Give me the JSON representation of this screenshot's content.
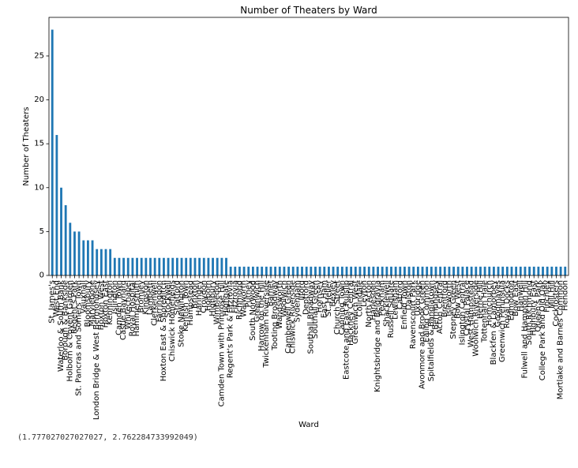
{
  "output_text": "(1.777027027027027, 2.762284733992049)",
  "chart_data": {
    "type": "bar",
    "title": "Number of Theaters by Ward",
    "xlabel": "Ward",
    "ylabel": "Number of Theaters",
    "ylim": [
      0,
      29.4
    ],
    "yticks": [
      0,
      5,
      10,
      15,
      20,
      25
    ],
    "grid": false,
    "bar_color": "#1f77b4",
    "categories": [
      "St. James's",
      "West End",
      "Waterloo & South Bank",
      "Borough & Bankside",
      "Holborn & Covent Garden",
      "Regent's Park",
      "St. Pancras and Somers Town",
      "Vauxhall",
      "Bloomsbury",
      "Marylebone",
      "London Bridge & West Bermondsey",
      "Hoxton West",
      "Hoxton East",
      "Kennington",
      "Islington",
      "Camden Town",
      "Castle Baynard",
      "Whitechapel",
      "Royal Hospital",
      "Hammersmith",
      "Bromley",
      "Kingston",
      "Lambeth",
      "Clerkenwell",
      "Farringdon",
      "Hoxton East & Shoreditch",
      "Stockwell",
      "Chiswick Homefields",
      "Stratford",
      "Stoke Newington",
      "Kentish Town",
      "Hampstead",
      "Brixton",
      "Haringey",
      "Croydon",
      "Holborn",
      "Highbury",
      "Wimbledon",
      "Camden Town with Primrose Hill",
      "Highgate",
      "Regent's Park & Fitzrovia",
      "Fitzrovia",
      "Richmond",
      "Walworth",
      "Putney",
      "South Norwood",
      "Greenwich",
      "Harrow on the Hill",
      "Twickenham Riverside",
      "Barnet",
      "Tooting Broadway",
      "Wandsworth",
      "Woolwich",
      "Camberwell Green",
      "Chiswick Riverside",
      "Sydenham",
      "Ilford",
      "Deptford",
      "Southall Broadway",
      "Southall Green",
      "Hornsey",
      "East Ham",
      "St. Helier",
      "Bexley",
      "Church Street",
      "Canning Town",
      "Eastcote and East Ruislip",
      "Hackney Central",
      "Greenwich West",
      "Colindale",
      "Leyton",
      "North Acton",
      "Harlesden",
      "Knightsbridge and Belgravia",
      "Peckham",
      "Shacklewell",
      "Russell Square",
      "Lewisham",
      "Catford",
      "Enfield Town",
      "Dalston",
      "Ravenscourt Park",
      "Uxbridge",
      "Avonmore and Brook Green",
      "Ealing Common",
      "Spitalfields & Banglatown",
      "Bermondsey",
      "Acton Central",
      "Brentford",
      "Isleworth",
      "Stepney Green",
      "Bow West",
      "Islington Central",
      "Crystal Palace",
      "West Hampstead",
      "Woolwich Riverside",
      "Herne Hill",
      "Tottenham Hale",
      "Hornchurch",
      "Blackfen & Lamorbey",
      "Goodmayes",
      "Greenwich Peninsula",
      "Royal Docks",
      "Edmonton",
      "Bow East",
      "Hanwell",
      "Fulwell and Hampton Hill",
      "South Richmond",
      "Highbury East",
      "Queen's Park",
      "College Park and Old Oak",
      "Finchley",
      "Mill Hill",
      "Cockfosters",
      "Mortlake and Barnes Common",
      "Hendon"
    ],
    "values": [
      28,
      16,
      10,
      8,
      6,
      5,
      5,
      4,
      4,
      4,
      3,
      3,
      3,
      3,
      2,
      2,
      2,
      2,
      2,
      2,
      2,
      2,
      2,
      2,
      2,
      2,
      2,
      2,
      2,
      2,
      2,
      2,
      2,
      2,
      2,
      2,
      2,
      2,
      2,
      2,
      1,
      1,
      1,
      1,
      1,
      1,
      1,
      1,
      1,
      1,
      1,
      1,
      1,
      1,
      1,
      1,
      1,
      1,
      1,
      1,
      1,
      1,
      1,
      1,
      1,
      1,
      1,
      1,
      1,
      1,
      1,
      1,
      1,
      1,
      1,
      1,
      1,
      1,
      1,
      1,
      1,
      1,
      1,
      1,
      1,
      1,
      1,
      1,
      1,
      1,
      1,
      1,
      1,
      1,
      1,
      1,
      1,
      1,
      1,
      1,
      1,
      1,
      1,
      1,
      1,
      1,
      1,
      1,
      1,
      1,
      1,
      1,
      1,
      1,
      1,
      1
    ]
  }
}
